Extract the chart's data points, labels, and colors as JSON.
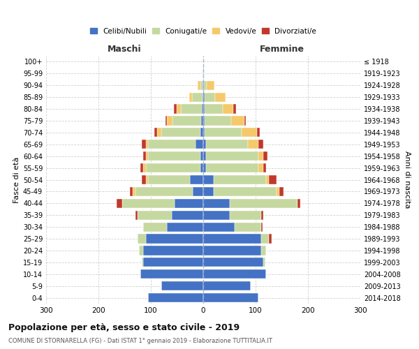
{
  "age_groups": [
    "0-4",
    "5-9",
    "10-14",
    "15-19",
    "20-24",
    "25-29",
    "30-34",
    "35-39",
    "40-44",
    "45-49",
    "50-54",
    "55-59",
    "60-64",
    "65-69",
    "70-74",
    "75-79",
    "80-84",
    "85-89",
    "90-94",
    "95-99",
    "100+"
  ],
  "birth_years": [
    "2014-2018",
    "2009-2013",
    "2004-2008",
    "1999-2003",
    "1994-1998",
    "1989-1993",
    "1984-1988",
    "1979-1983",
    "1974-1978",
    "1969-1973",
    "1964-1968",
    "1959-1963",
    "1954-1958",
    "1949-1953",
    "1944-1948",
    "1939-1943",
    "1934-1938",
    "1929-1933",
    "1924-1928",
    "1919-1923",
    "≤ 1918"
  ],
  "male": {
    "celibi": [
      105,
      80,
      120,
      115,
      115,
      110,
      70,
      60,
      55,
      20,
      25,
      5,
      5,
      15,
      5,
      4,
      3,
      2,
      1,
      0,
      0
    ],
    "coniugati": [
      0,
      0,
      0,
      3,
      8,
      15,
      45,
      65,
      100,
      110,
      80,
      105,
      100,
      90,
      75,
      55,
      40,
      20,
      5,
      1,
      0
    ],
    "vedovi": [
      0,
      0,
      0,
      0,
      0,
      0,
      0,
      0,
      0,
      5,
      5,
      5,
      5,
      5,
      8,
      10,
      8,
      5,
      5,
      0,
      0
    ],
    "divorziati": [
      0,
      0,
      0,
      0,
      0,
      0,
      0,
      5,
      10,
      5,
      8,
      5,
      5,
      8,
      5,
      3,
      5,
      0,
      0,
      0,
      0
    ]
  },
  "female": {
    "nubili": [
      105,
      90,
      120,
      115,
      110,
      110,
      60,
      50,
      50,
      20,
      20,
      5,
      5,
      5,
      3,
      3,
      2,
      2,
      1,
      0,
      0
    ],
    "coniugate": [
      0,
      0,
      0,
      3,
      10,
      15,
      50,
      60,
      130,
      120,
      100,
      100,
      100,
      80,
      70,
      50,
      35,
      20,
      5,
      0,
      0
    ],
    "vedove": [
      0,
      0,
      0,
      0,
      0,
      0,
      0,
      0,
      0,
      5,
      5,
      10,
      10,
      20,
      30,
      25,
      20,
      20,
      15,
      1,
      0
    ],
    "divorziate": [
      0,
      0,
      0,
      0,
      0,
      5,
      3,
      5,
      5,
      8,
      15,
      5,
      8,
      10,
      5,
      3,
      5,
      0,
      0,
      0,
      0
    ]
  },
  "colors": {
    "celibi": "#4472c4",
    "coniugati": "#c5d8a0",
    "vedovi": "#f5c96a",
    "divorziati": "#c0392b"
  },
  "title": "Popolazione per età, sesso e stato civile - 2019",
  "subtitle": "COMUNE DI STORNARELLA (FG) - Dati ISTAT 1° gennaio 2019 - Elaborazione TUTTITALIA.IT",
  "ylabel_left": "Fasce di età",
  "ylabel_right": "Anni di nascita",
  "xlabel_left": "Maschi",
  "xlabel_right": "Femmine",
  "xlim": 300,
  "bg_color": "#ffffff",
  "grid_color": "#cccccc"
}
